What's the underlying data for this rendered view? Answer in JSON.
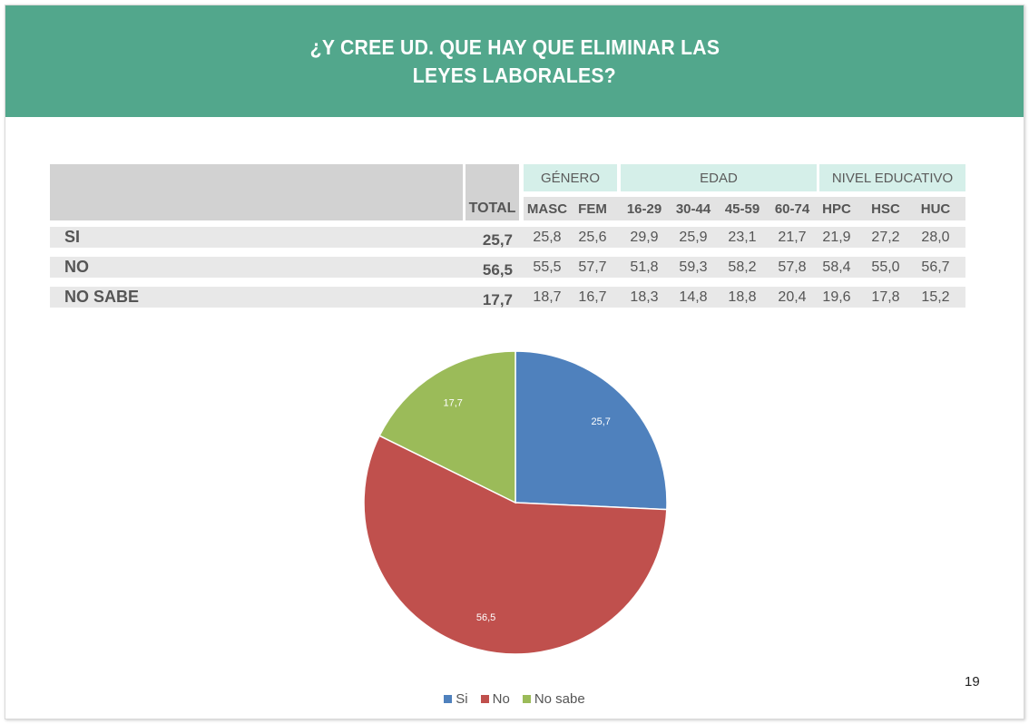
{
  "title_line1": "¿Y CREE UD. QUE HAY QUE ELIMINAR LAS",
  "title_line2": "LEYES LABORALES?",
  "table": {
    "total_header": "TOTAL",
    "groups": [
      {
        "label": "GÉNERO",
        "columns": [
          "MASC",
          "FEM"
        ]
      },
      {
        "label": "EDAD",
        "columns": [
          "16-29",
          "30-44",
          "45-59",
          "60-74"
        ]
      },
      {
        "label": "NIVEL EDUCATIVO",
        "columns": [
          "HPC",
          "HSC",
          "HUC"
        ]
      }
    ],
    "rows": [
      {
        "label": "SI",
        "total": "25,7",
        "values": [
          "25,8",
          "25,6",
          "29,9",
          "25,9",
          "23,1",
          "21,7",
          "21,9",
          "27,2",
          "28,0"
        ]
      },
      {
        "label": "NO",
        "total": "56,5",
        "values": [
          "55,5",
          "57,7",
          "51,8",
          "59,3",
          "58,2",
          "57,8",
          "58,4",
          "55,0",
          "56,7"
        ]
      },
      {
        "label": "NO SABE",
        "total": "17,7",
        "values": [
          "18,7",
          "16,7",
          "18,3",
          "14,8",
          "18,8",
          "20,4",
          "19,6",
          "17,8",
          "15,2"
        ]
      }
    ]
  },
  "chart_data": {
    "type": "pie",
    "categories": [
      "Si",
      "No",
      "No sabe"
    ],
    "values": [
      25.7,
      56.5,
      17.7
    ],
    "data_labels": [
      "25,7",
      "56,5",
      "17,7"
    ],
    "colors": [
      "#4f81bd",
      "#c0504d",
      "#9bbb59"
    ],
    "legend_position": "bottom"
  },
  "page_number": "19"
}
